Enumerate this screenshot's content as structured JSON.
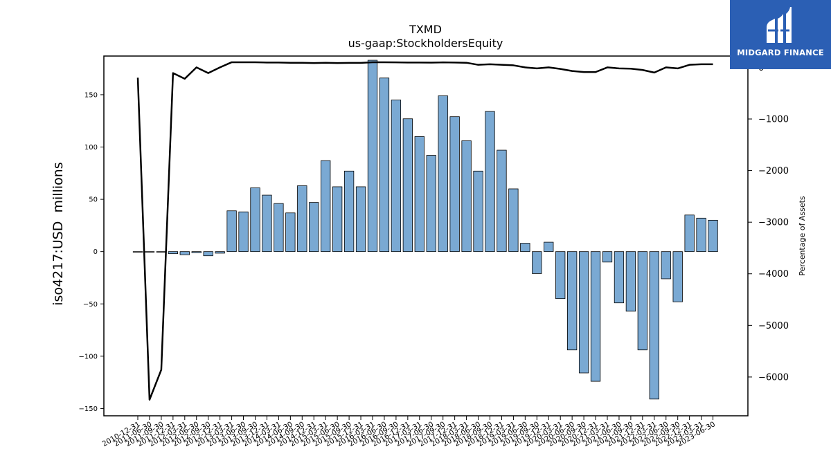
{
  "brand": {
    "name": "MIDGARD FINANCE",
    "color": "#2b5fb4"
  },
  "chart_data": {
    "type": "bar",
    "title": "TXMD",
    "subtitle": "us-gaap:StockholdersEquity",
    "ylabel": "iso4217:USD  millions",
    "y2label": "Percentage of Assets",
    "ylim": [
      -157,
      187
    ],
    "y2lim": [
      -6752,
      220
    ],
    "yticks": [
      -150,
      -100,
      -50,
      0,
      50,
      100,
      150
    ],
    "y2ticks": [
      0,
      -1000,
      -2000,
      -3000,
      -4000,
      -5000,
      -6000
    ],
    "y2tick_labels": [
      "0",
      "−1000",
      "−2000",
      "−3000",
      "−4000",
      "−5000",
      "−6000"
    ],
    "grid": false,
    "bar_color": "#7aa9d3",
    "line_color": "#000000",
    "categories": [
      "2010-12-31",
      "2011-06-30",
      "2011-09-30",
      "2011-12-31",
      "2012-03-31",
      "2012-06-30",
      "2012-09-30",
      "2012-12-31",
      "2013-03-31",
      "2013-06-30",
      "2013-09-30",
      "2013-12-31",
      "2014-03-31",
      "2014-06-30",
      "2014-09-30",
      "2014-12-31",
      "2015-03-31",
      "2015-06-30",
      "2015-09-30",
      "2015-12-31",
      "2016-03-31",
      "2016-06-30",
      "2016-09-30",
      "2016-12-31",
      "2017-03-31",
      "2017-06-30",
      "2017-09-30",
      "2017-12-31",
      "2018-03-31",
      "2018-06-30",
      "2018-09-30",
      "2018-12-31",
      "2019-03-31",
      "2019-06-30",
      "2019-09-30",
      "2019-12-31",
      "2020-03-31",
      "2020-06-30",
      "2020-09-30",
      "2020-12-31",
      "2021-03-31",
      "2021-06-30",
      "2021-09-30",
      "2021-12-31",
      "2022-03-31",
      "2022-06-30",
      "2022-09-30",
      "2022-12-31",
      "2023-03-31",
      "2023-06-30"
    ],
    "series": [
      {
        "type": "bar",
        "axis": "left",
        "values": [
          -0.3,
          -0.5,
          -0.3,
          -2,
          -3,
          -1,
          -4,
          -1.5,
          39,
          38,
          61,
          54,
          46,
          37,
          63,
          47,
          87,
          62,
          77,
          62,
          183,
          166,
          145,
          127,
          110,
          92,
          149,
          129,
          106,
          77,
          134,
          97,
          60,
          8,
          -21,
          9,
          -45,
          -94,
          -116,
          -124,
          -10,
          -49,
          -57,
          -94,
          -141,
          -26,
          -48,
          35,
          32,
          30
        ]
      },
      {
        "type": "line",
        "axis": "right",
        "values": [
          -200,
          -6440,
          -5860,
          -110,
          -220,
          0,
          -110,
          0,
          100,
          100,
          100,
          95,
          95,
          90,
          90,
          85,
          90,
          85,
          88,
          88,
          100,
          100,
          97,
          95,
          95,
          92,
          97,
          95,
          90,
          50,
          60,
          50,
          40,
          0,
          -20,
          0,
          -30,
          -70,
          -90,
          -90,
          0,
          -20,
          -25,
          -50,
          -100,
          0,
          -20,
          50,
          60,
          60
        ]
      }
    ]
  }
}
